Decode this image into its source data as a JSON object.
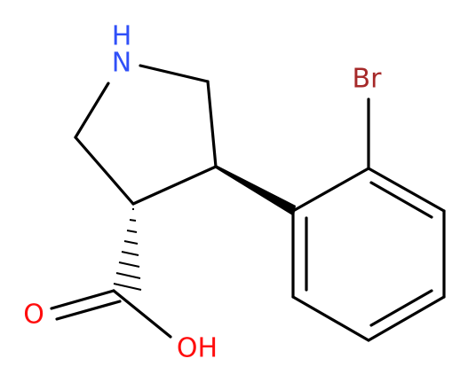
{
  "atoms": [
    {
      "label": "H"
    },
    {
      "label": "N"
    },
    {
      "label": "Br"
    },
    {
      "label": "O"
    },
    {
      "label": "OH"
    }
  ]
}
